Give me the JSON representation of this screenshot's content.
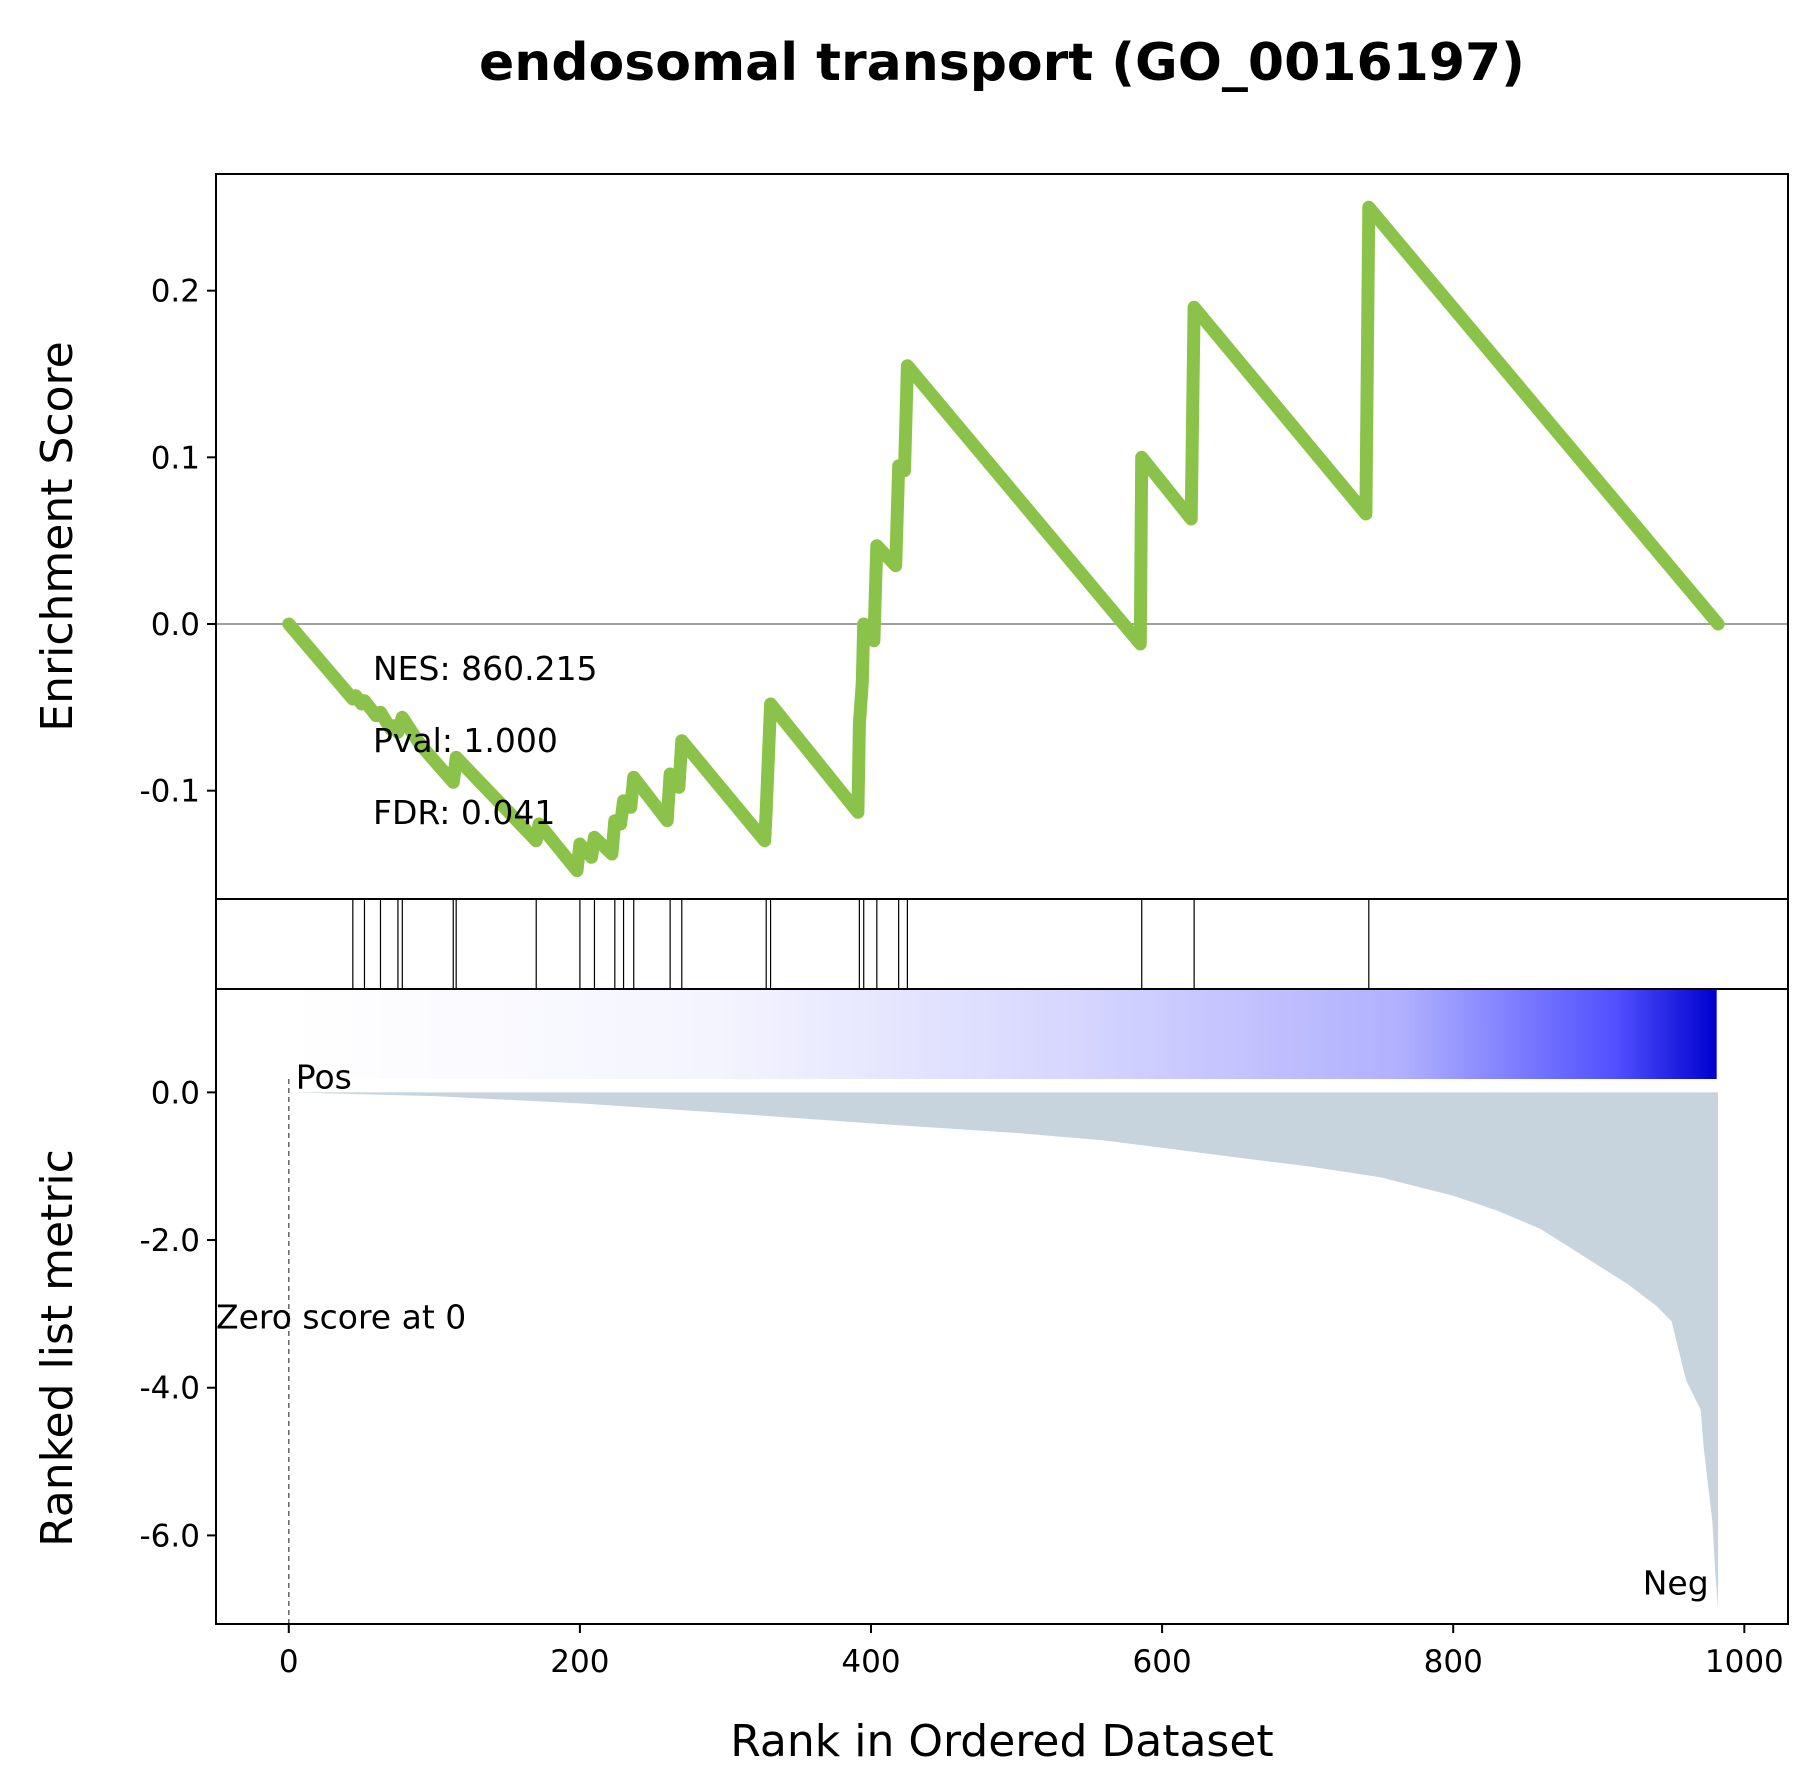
{
  "chart_data": {
    "type": "line",
    "title": "endosomal transport (GO_0016197)",
    "xlabel": "Rank in Ordered Dataset",
    "xlim": [
      -50,
      1030
    ],
    "x_ticks": [
      0,
      200,
      400,
      600,
      800,
      1000
    ],
    "n_genes": 982,
    "enrichment": {
      "ylabel": "Enrichment Score",
      "ylim": [
        -0.165,
        0.27
      ],
      "y_ticks": [
        -0.1,
        0.0,
        0.1,
        0.2
      ],
      "y_tick_labels": [
        "-0.1",
        "0.0",
        "0.1",
        "0.2"
      ],
      "line_color": "#8bc34a",
      "x": [
        0,
        44,
        46,
        50,
        52,
        60,
        63,
        70,
        72,
        75,
        78,
        90,
        100,
        113,
        115,
        170,
        172,
        198,
        200,
        208,
        210,
        222,
        224,
        228,
        230,
        235,
        237,
        260,
        262,
        268,
        270,
        327,
        328,
        329,
        331,
        391,
        392,
        394,
        395,
        402,
        404,
        417,
        419,
        423,
        425,
        585,
        586,
        620,
        622,
        740,
        742,
        982
      ],
      "y": [
        0.0,
        -0.045,
        -0.043,
        -0.048,
        -0.046,
        -0.055,
        -0.053,
        -0.063,
        -0.061,
        -0.065,
        -0.056,
        -0.072,
        -0.082,
        -0.095,
        -0.08,
        -0.13,
        -0.12,
        -0.148,
        -0.132,
        -0.14,
        -0.128,
        -0.138,
        -0.118,
        -0.12,
        -0.106,
        -0.11,
        -0.092,
        -0.118,
        -0.09,
        -0.098,
        -0.07,
        -0.13,
        -0.112,
        -0.09,
        -0.048,
        -0.113,
        -0.06,
        -0.035,
        0.0,
        -0.01,
        0.047,
        0.035,
        0.095,
        0.092,
        0.155,
        -0.012,
        0.1,
        0.063,
        0.19,
        0.066,
        0.25,
        0.0
      ],
      "hits": [
        44,
        52,
        63,
        75,
        78,
        113,
        115,
        170,
        200,
        210,
        224,
        230,
        237,
        262,
        270,
        328,
        331,
        392,
        395,
        404,
        419,
        425,
        586,
        622,
        742
      ],
      "annotations": [
        "NES: 860.215",
        "Pval: 1.000",
        "FDR: 0.041"
      ]
    },
    "ranked_metric": {
      "ylabel": "Ranked list metric",
      "ylim": [
        -7.2,
        1.4
      ],
      "y_ticks": [
        0,
        -2,
        -4,
        -6
      ],
      "y_tick_labels": [
        "0.0",
        "-2.0",
        "-4.0",
        "-6.0"
      ],
      "fill_color": "#c8d4dd",
      "x": [
        0,
        100,
        200,
        300,
        400,
        500,
        560,
        600,
        650,
        700,
        750,
        800,
        830,
        860,
        880,
        900,
        920,
        940,
        950,
        955,
        960,
        965,
        970,
        972,
        975,
        978,
        980,
        982
      ],
      "y": [
        0.0,
        -0.05,
        -0.15,
        -0.28,
        -0.42,
        -0.55,
        -0.65,
        -0.75,
        -0.88,
        -1.0,
        -1.15,
        -1.4,
        -1.6,
        -1.85,
        -2.1,
        -2.35,
        -2.6,
        -2.9,
        -3.1,
        -3.5,
        -3.9,
        -4.1,
        -4.3,
        -4.8,
        -5.3,
        -5.8,
        -6.5,
        -7.0
      ],
      "pos_label": "Pos",
      "neg_label": "Neg",
      "zero_label": "Zero score at 0",
      "pos_color": "#ff0000",
      "neg_color": "#0000ff"
    },
    "gradient": {
      "from_color": "#ffffff",
      "to_color": "#0000d0"
    }
  }
}
